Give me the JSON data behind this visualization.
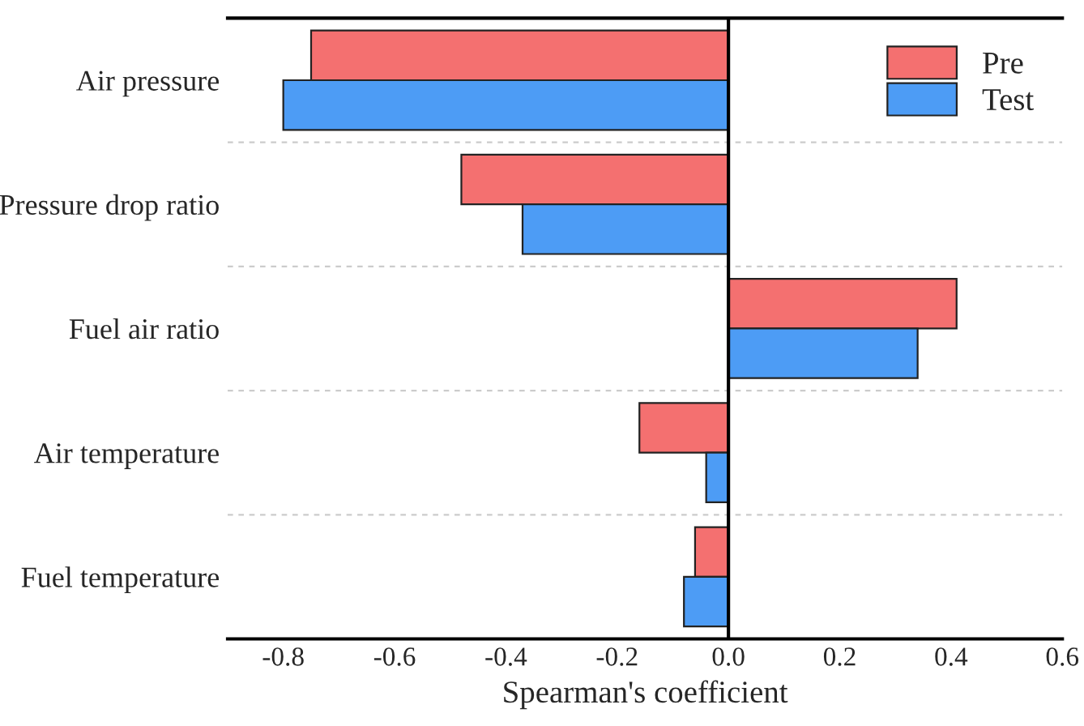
{
  "chart_data": {
    "type": "bar",
    "orientation": "horizontal",
    "xlabel": "Spearman's coefficient",
    "categories": [
      "Air pressure",
      "Pressure drop ratio",
      "Fuel air ratio",
      "Air temperature",
      "Fuel temperature"
    ],
    "series": [
      {
        "name": "Pre",
        "color": "#f47070",
        "values": [
          -0.75,
          -0.48,
          0.41,
          -0.16,
          -0.06
        ]
      },
      {
        "name": "Test",
        "color": "#4d9cf5",
        "values": [
          -0.8,
          -0.37,
          0.34,
          -0.04,
          -0.08
        ]
      }
    ],
    "xlim": [
      -0.9,
      0.6
    ],
    "xticks": [
      -0.8,
      -0.6,
      -0.4,
      -0.2,
      {
        "value": 0,
        "label": "0.0"
      },
      0.2,
      0.4,
      0.6
    ],
    "grid": "y",
    "legend": "top right"
  }
}
